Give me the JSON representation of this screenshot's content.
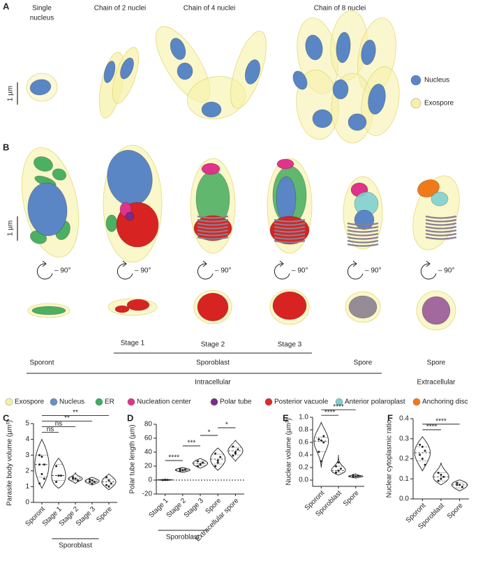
{
  "panel_a": {
    "label": "A",
    "columns": [
      {
        "lines": [
          "Single",
          "nucleus"
        ]
      },
      {
        "lines": [
          "Chain of 2 nuclei"
        ]
      },
      {
        "lines": [
          "Chain of 4 nuclei"
        ]
      },
      {
        "lines": [
          "Chain of 8 nuclei"
        ]
      }
    ],
    "scale_label": "1 µm",
    "legend": [
      {
        "label": "Nucleus",
        "color": "#5a86c5"
      },
      {
        "label": "Exospore",
        "color": "#f6f1a6"
      }
    ]
  },
  "panel_b": {
    "label": "B",
    "scale_label": "1 µm",
    "rotation_label": "– 90°",
    "stage_labels": [
      "Stage 1",
      "Stage 2",
      "Stage 3"
    ],
    "group_labels": [
      "Sporont",
      "Sporoblast",
      "Spore",
      "Spore"
    ],
    "location_labels": [
      "Intracellular",
      "Extracellular"
    ],
    "legend": [
      {
        "label": "Exospore",
        "color": "#f6f1a6"
      },
      {
        "label": "Nucleus",
        "color": "#6a8fc8"
      },
      {
        "label": "ER",
        "color": "#3fae5c"
      },
      {
        "label": "Nucleation center",
        "color": "#e0338a"
      },
      {
        "label": "Polar tube",
        "color": "#7a2c8c"
      },
      {
        "label": "Posterior vacuole",
        "color": "#e02a2a"
      },
      {
        "label": "Anterior polaroplast",
        "color": "#7fcfcf"
      },
      {
        "label": "Anchoring disc",
        "color": "#f07a1a"
      }
    ]
  },
  "chart_data": [
    {
      "type": "violin",
      "panel": "C",
      "y_label": "Parasite body volume (µm³)",
      "categories": [
        "Sporont",
        "Stage 1",
        "Stage 2",
        "Stage 3",
        "Spore"
      ],
      "group": {
        "label": "Sporoblast",
        "span": [
          1,
          3
        ]
      },
      "stats": [
        {
          "min": 0.9,
          "q1": 1.6,
          "median": 2.4,
          "q3": 3.0,
          "max": 4.0,
          "points": [
            3.0,
            2.9,
            2.4,
            2.4,
            1.8,
            1.5,
            1.2
          ]
        },
        {
          "min": 0.9,
          "q1": 1.4,
          "median": 1.7,
          "q3": 2.4,
          "max": 2.8,
          "points": [
            2.3,
            1.7,
            1.7,
            1.3
          ]
        },
        {
          "min": 1.2,
          "q1": 1.4,
          "median": 1.5,
          "q3": 1.6,
          "max": 1.9,
          "points": [
            1.6,
            1.5,
            1.4,
            1.5
          ]
        },
        {
          "min": 1.1,
          "q1": 1.25,
          "median": 1.35,
          "q3": 1.45,
          "max": 1.6,
          "points": [
            1.45,
            1.4,
            1.3,
            1.3,
            1.2
          ]
        },
        {
          "min": 0.8,
          "q1": 1.1,
          "median": 1.3,
          "q3": 1.5,
          "max": 1.8,
          "points": [
            1.6,
            1.4,
            1.2,
            1.1,
            1.0
          ]
        }
      ],
      "comparisons": [
        {
          "pair": [
            0,
            1
          ],
          "label": "ns"
        },
        {
          "pair": [
            0,
            2
          ],
          "label": "ns"
        },
        {
          "pair": [
            0,
            3
          ],
          "label": "**"
        },
        {
          "pair": [
            0,
            4
          ],
          "label": "**"
        }
      ],
      "ylim": [
        0,
        5
      ],
      "yticks": [
        0,
        1,
        2,
        3,
        4,
        5
      ]
    },
    {
      "type": "violin",
      "panel": "D",
      "y_label": "Polar tube length (µm)",
      "categories": [
        "Stage 1",
        "Stage 2",
        "Stage 3",
        "Spore",
        "Extracellular spore"
      ],
      "group": {
        "label": "Sporoblast",
        "span": [
          0,
          2
        ]
      },
      "stats": [
        {
          "min": -1,
          "q1": 0,
          "median": 0.3,
          "q3": 0.6,
          "max": 1,
          "points": [
            0,
            0.5,
            0.2
          ]
        },
        {
          "min": 11,
          "q1": 13,
          "median": 14.5,
          "q3": 16,
          "max": 18,
          "points": [
            13,
            14,
            15,
            16,
            14
          ]
        },
        {
          "min": 17,
          "q1": 21,
          "median": 24,
          "q3": 27,
          "max": 31,
          "points": [
            20,
            23,
            25,
            27,
            22
          ]
        },
        {
          "min": 14,
          "q1": 23,
          "median": 30,
          "q3": 37,
          "max": 46,
          "points": [
            20,
            28,
            33,
            38,
            25
          ]
        },
        {
          "min": 27,
          "q1": 36,
          "median": 42,
          "q3": 47,
          "max": 57,
          "points": [
            35,
            40,
            44,
            48,
            38
          ]
        }
      ],
      "comparisons": [
        {
          "pair": [
            0,
            1
          ],
          "label": "****"
        },
        {
          "pair": [
            1,
            2
          ],
          "label": "***"
        },
        {
          "pair": [
            2,
            3
          ],
          "label": "*"
        },
        {
          "pair": [
            3,
            4
          ],
          "label": "*"
        }
      ],
      "reference_line": 0,
      "ylim": [
        -20,
        80
      ],
      "yticks": [
        -20,
        0,
        20,
        40,
        60,
        80
      ]
    },
    {
      "type": "violin",
      "panel": "E",
      "y_label": "Nuclear volume (µm³)",
      "categories": [
        "Sporont",
        "Sporoblast",
        "Spore"
      ],
      "stats": [
        {
          "min": 0.2,
          "q1": 0.45,
          "median": 0.62,
          "q3": 0.68,
          "max": 0.92,
          "points": [
            0.65,
            0.63,
            0.6,
            0.45,
            0.3,
            0.7
          ]
        },
        {
          "min": 0.08,
          "q1": 0.12,
          "median": 0.15,
          "q3": 0.22,
          "max": 0.4,
          "points": [
            0.12,
            0.15,
            0.18,
            0.22,
            0.28
          ]
        },
        {
          "min": 0.03,
          "q1": 0.05,
          "median": 0.06,
          "q3": 0.07,
          "max": 0.1,
          "points": [
            0.05,
            0.06,
            0.07,
            0.08
          ]
        }
      ],
      "comparisons": [
        {
          "pair": [
            0,
            1
          ],
          "label": "****"
        },
        {
          "pair": [
            0,
            2
          ],
          "label": "****"
        }
      ],
      "ylim": [
        -0.1,
        1.0
      ],
      "yticks": [
        {
          "value": 0,
          "label": "0.0"
        },
        0.2,
        0.4,
        0.6,
        0.8,
        {
          "value": 1,
          "label": "1.0"
        }
      ]
    },
    {
      "type": "violin",
      "panel": "F",
      "y_label": "Nuclear cytoplasmic ratio",
      "categories": [
        "Sporont",
        "Sporoblast",
        "Spore"
      ],
      "stats": [
        {
          "min": 0.14,
          "q1": 0.19,
          "median": 0.23,
          "q3": 0.26,
          "max": 0.31,
          "points": [
            0.27,
            0.26,
            0.24,
            0.22,
            0.2,
            0.17
          ]
        },
        {
          "min": 0.07,
          "q1": 0.09,
          "median": 0.11,
          "q3": 0.13,
          "max": 0.18,
          "points": [
            0.13,
            0.12,
            0.11,
            0.09,
            0.1
          ]
        },
        {
          "min": 0.04,
          "q1": 0.055,
          "median": 0.07,
          "q3": 0.08,
          "max": 0.095,
          "points": [
            0.08,
            0.07,
            0.06,
            0.07
          ]
        }
      ],
      "comparisons": [
        {
          "pair": [
            0,
            1
          ],
          "label": "****"
        },
        {
          "pair": [
            0,
            2
          ],
          "label": "****"
        }
      ],
      "ylim": [
        0,
        0.4
      ],
      "yticks": [
        {
          "value": 0,
          "label": "0.0"
        },
        0.1,
        0.2,
        0.3,
        0.4
      ]
    }
  ]
}
